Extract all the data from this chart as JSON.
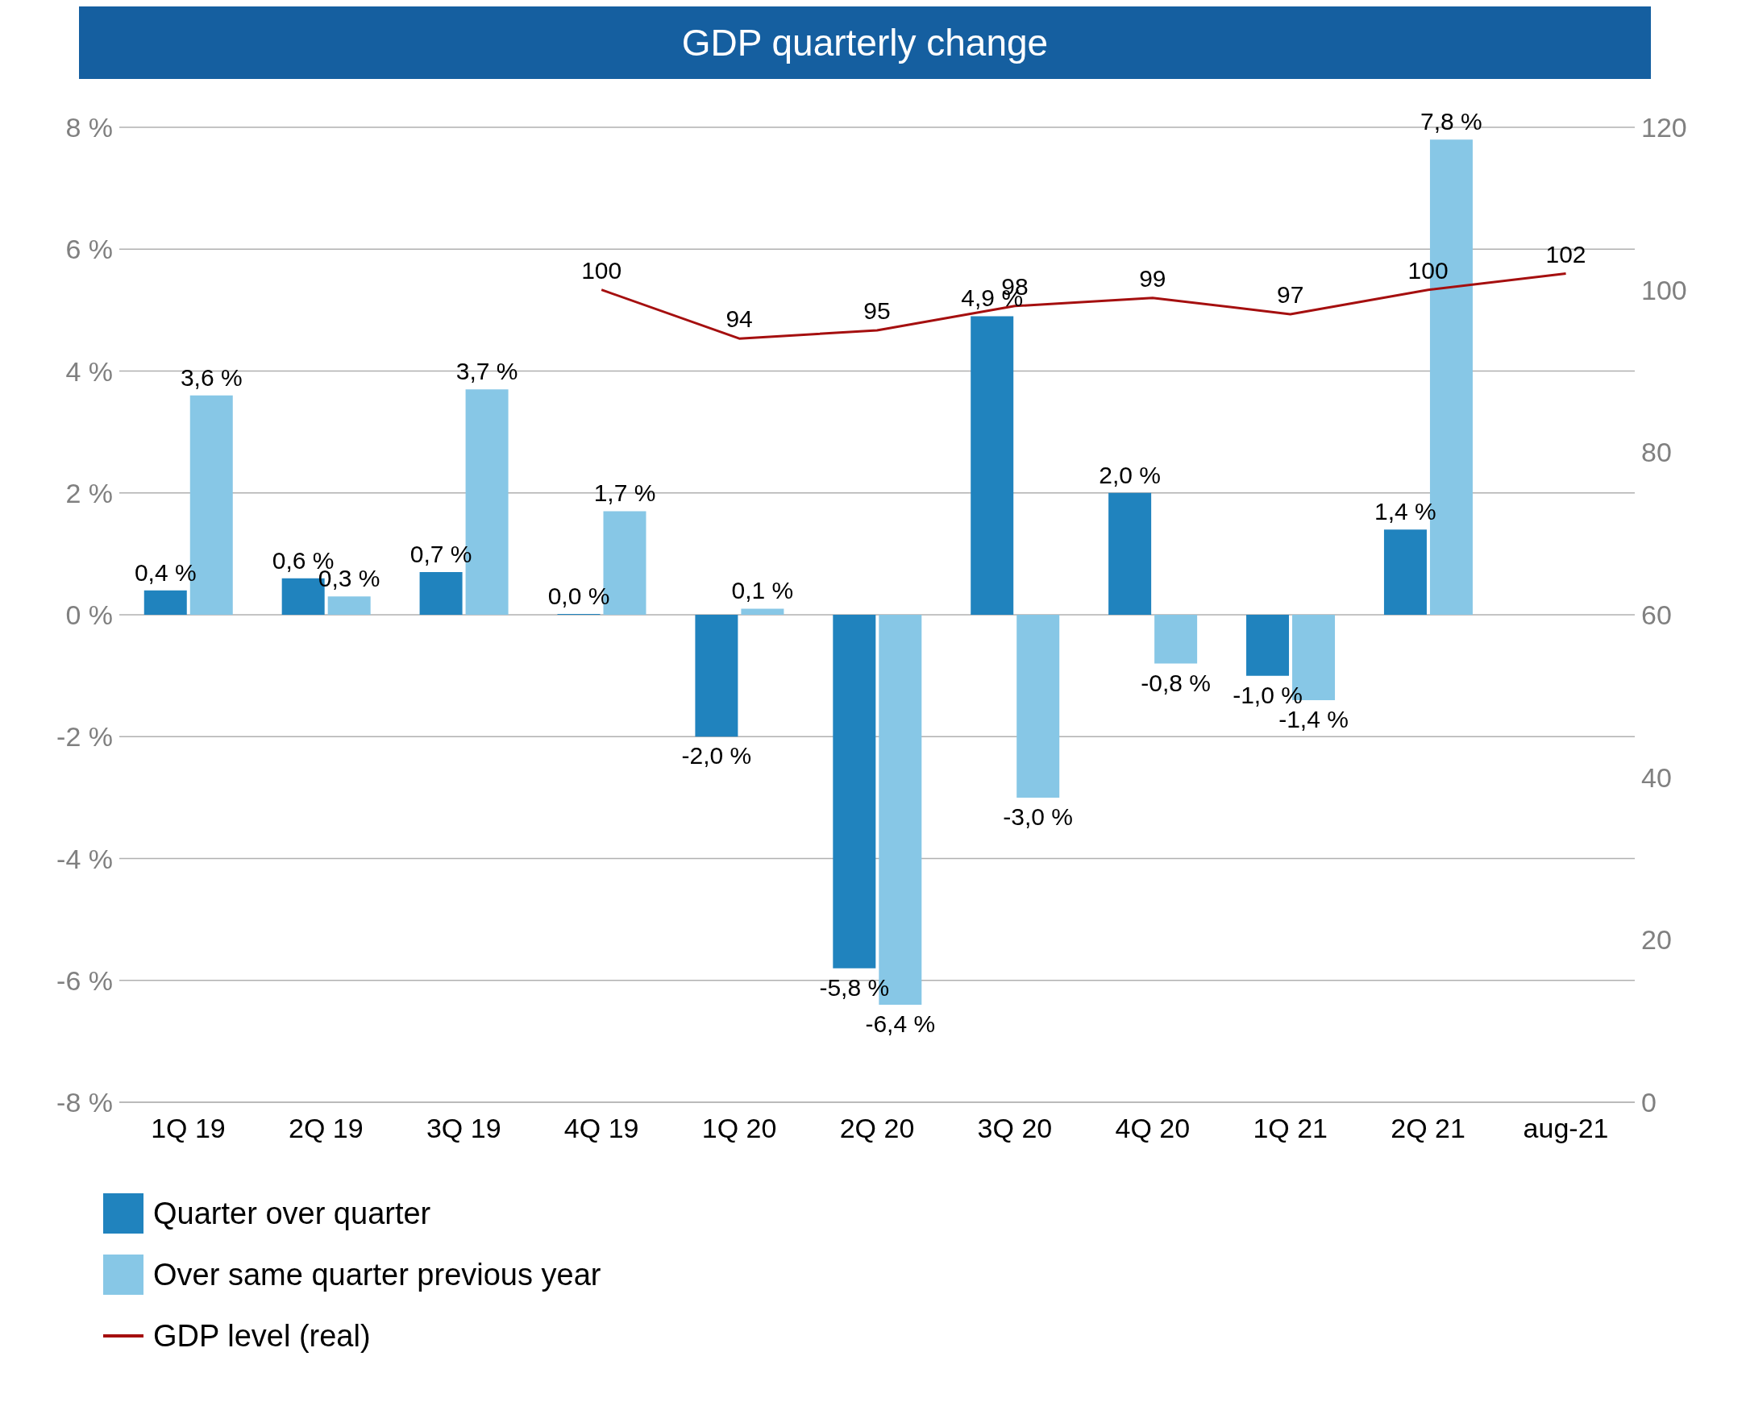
{
  "chart_data": {
    "type": "bar",
    "title": "GDP quarterly change",
    "categories": [
      "1Q 19",
      "2Q 19",
      "3Q 19",
      "4Q 19",
      "1Q 20",
      "2Q 20",
      "3Q 20",
      "4Q 20",
      "1Q 21",
      "2Q 21",
      "aug-21"
    ],
    "series": [
      {
        "name": "Quarter over quarter",
        "color": "#2083be",
        "values": [
          0.4,
          0.6,
          0.7,
          0.0,
          -2.0,
          -5.8,
          4.9,
          2.0,
          -1.0,
          1.4,
          null
        ],
        "value_labels": [
          "0,4 %",
          "0,6 %",
          "0,7 %",
          "0,0 %",
          "-2,0 %",
          "-5,8 %",
          "4,9 %",
          "2,0 %",
          "-1,0 %",
          "1,4 %",
          null
        ]
      },
      {
        "name": "Over same quarter previous year",
        "color": "#87c7e6",
        "values": [
          3.6,
          0.3,
          3.7,
          1.7,
          0.1,
          -6.4,
          -3.0,
          -0.8,
          -1.4,
          7.8,
          null
        ],
        "value_labels": [
          "3,6 %",
          "0,3 %",
          "3,7 %",
          "1,7 %",
          "0,1 %",
          "-6,4 %",
          "-3,0 %",
          "-0,8 %",
          "-1,4 %",
          "7,8 %",
          null
        ]
      },
      {
        "name": "GDP level (real)",
        "type": "line",
        "axis": "y2",
        "color": "#a50f0f",
        "values": [
          null,
          null,
          null,
          100,
          94,
          95,
          98,
          99,
          97,
          100,
          102
        ],
        "value_labels": [
          null,
          null,
          null,
          "100",
          "94",
          "95",
          "98",
          "99",
          "97",
          "100",
          "102"
        ]
      }
    ],
    "ylim": [
      -8,
      8
    ],
    "yticks": [
      {
        "value": -8,
        "label": "-8 %"
      },
      {
        "value": -6,
        "label": "-6 %"
      },
      {
        "value": -4,
        "label": "-4 %"
      },
      {
        "value": -2,
        "label": "-2 %"
      },
      {
        "value": 0,
        "label": "0 %"
      },
      {
        "value": 2,
        "label": "2 %"
      },
      {
        "value": 4,
        "label": "4 %"
      },
      {
        "value": 6,
        "label": "6 %"
      },
      {
        "value": 8,
        "label": "8 %"
      }
    ],
    "y2lim": [
      0,
      120
    ],
    "y2ticks": [
      0,
      20,
      40,
      60,
      80,
      100,
      120
    ],
    "grid": "y",
    "legend": "bottom left",
    "marker": "none",
    "line_style": "solid"
  }
}
